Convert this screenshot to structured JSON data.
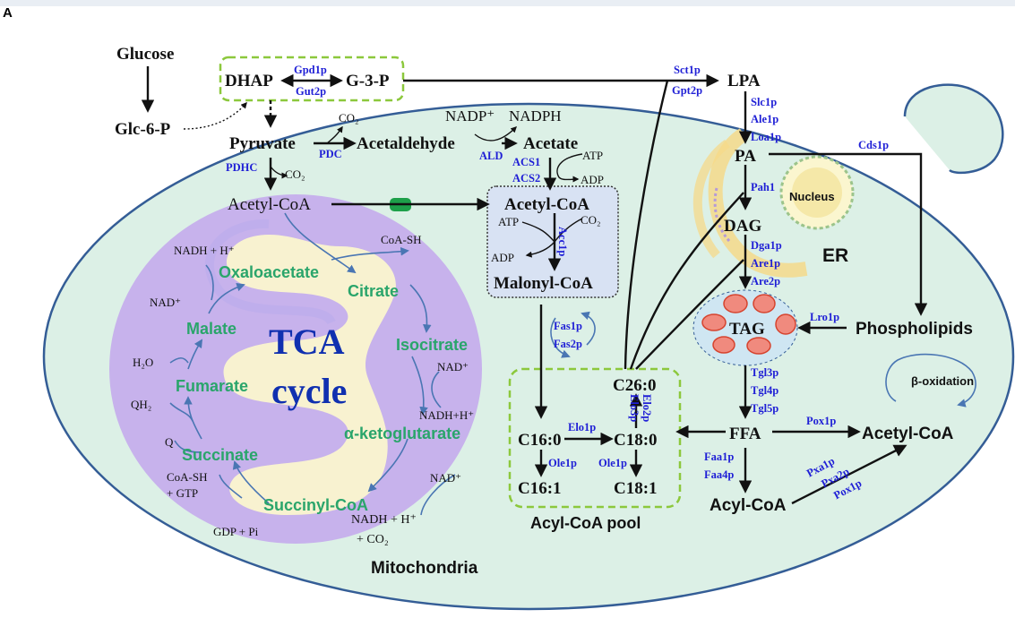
{
  "panel_label": "A",
  "metabolites": {
    "glucose": "Glucose",
    "glc6p": "Glc-6-P",
    "dhap": "DHAP",
    "g3p": "G-3-P",
    "lpa": "LPA",
    "pyruvate": "Pyruvate",
    "acetaldehyde": "Acetaldehyde",
    "acetate": "Acetate",
    "nadp_plus": "NADP⁺",
    "nadph": "NADPH",
    "co2": "CO₂",
    "atp": "ATP",
    "adp": "ADP",
    "acetyl_coa": "Acetyl-CoA",
    "acetyl_coa_cyto": "Acetyl-CoA",
    "malonyl_coa": "Malonyl-CoA",
    "pa": "PA",
    "dag": "DAG",
    "tag": "TAG",
    "er": "ER",
    "nucleus": "Nucleus",
    "phospholipids": "Phospholipids",
    "ffa": "FFA",
    "acetyl_coa_right": "Acetyl-CoA",
    "acyl_coa": "Acyl-CoA",
    "beta_oxidation": "β-oxidation",
    "c26_0": "C26:0",
    "c16_0": "C16:0",
    "c18_0": "C18:0",
    "c16_1": "C16:1",
    "c18_1": "C18:1",
    "acyl_coa_pool": "Acyl-CoA pool",
    "mitochondria": "Mitochondria"
  },
  "enzymes": {
    "gpd1p": "Gpd1p",
    "gut2p": "Gut2p",
    "sct1p": "Sct1p",
    "gpt2p": "Gpt2p",
    "slc1p": "Slc1p",
    "ale1p": "Ale1p",
    "loa1p": "Loa1p",
    "cds1p": "Cds1p",
    "pah1": "Pah1",
    "dga1p": "Dga1p",
    "are1p": "Are1p",
    "are2p": "Are2p",
    "lro1p": "Lro1p",
    "tgl3p": "Tgl3p",
    "tgl4p": "Tgl4p",
    "tgl5p": "Tgl5p",
    "pox1p": "Pox1p",
    "faa1p": "Faa1p",
    "faa4p": "Faa4p",
    "pxa1p": "Pxa1p",
    "pxa2p": "Pxa2p",
    "pox1p_b": "Pox1p",
    "pdc": "PDC",
    "pdhc": "PDHC",
    "ald": "ALD",
    "acs1": "ACS1",
    "acs2": "ACS2",
    "acc1p": "Acc1p",
    "fas1p": "Fas1p",
    "fas2p": "Fas2p",
    "elo1p": "Elo1p",
    "elo2p": "Elo2p",
    "elo3p": "Elo3p",
    "ole1p": "Ole1p",
    "ole1p_b": "Ole1p"
  },
  "tca": {
    "title_line1": "TCA",
    "title_line2": "cycle",
    "oxaloacetate": "Oxaloacetate",
    "citrate": "Citrate",
    "isocitrate": "Isocitrate",
    "alpha_kg": "α-ketoglutarate",
    "succinyl_coa": "Succinyl-CoA",
    "succinate": "Succinate",
    "fumarate": "Fumarate",
    "malate": "Malate",
    "nadh_h_1": "NADH + H⁺",
    "nad_1": "NAD⁺",
    "coa_sh": "CoA-SH",
    "h2o": "H₂O",
    "qh2": "QH₂",
    "q": "Q",
    "coa_sh_gtp_1": "CoA-SH",
    "coa_sh_gtp_2": "+ GTP",
    "gdp_pi": "GDP + Pi",
    "nad_2": "NAD⁺",
    "nadh_h_2": "NADH+H⁺",
    "nad_3": "NAD⁺",
    "nadh_h_3": "NADH + H⁺",
    "co2_2": "+ CO₂"
  },
  "colors": {
    "cell": "#dcf0e6",
    "mito": "#c7b2ec",
    "mito_inner": "#fbf6cf",
    "enzyme": "#1f1fd6",
    "tca_metabolite": "#2aa56b",
    "tca_title": "#1030b0",
    "dashed_box": "#8cc83c",
    "lipid_droplet": "#f08a7e",
    "transporter": "#1ea04a"
  }
}
